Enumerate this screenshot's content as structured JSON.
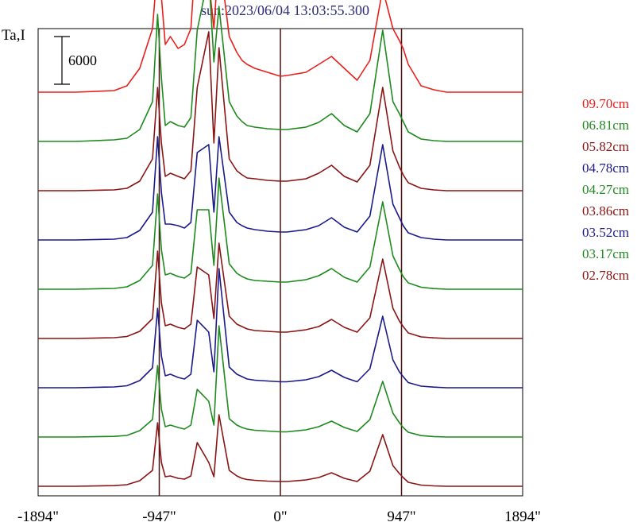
{
  "chart_data": {
    "type": "line",
    "title": "sun:2023/06/04 13:03:55.300",
    "ylabel": "Ta,I",
    "scale_bar_label": "6000",
    "scale_bar_value": 6000,
    "xlim": [
      -1894,
      1894
    ],
    "x_ticks": [
      {
        "value": -1894,
        "label": "-1894\""
      },
      {
        "value": -947,
        "label": "-947\""
      },
      {
        "value": 0,
        "label": "0\""
      },
      {
        "value": 947,
        "label": "947\""
      },
      {
        "value": 1894,
        "label": "1894\""
      }
    ],
    "vertical_lines": [
      -947,
      0,
      947
    ],
    "grid": false,
    "legend_position": "right",
    "trace_offset": 6200,
    "x": [
      -1894,
      -1600,
      -1300,
      -1200,
      -1100,
      -1000,
      -960,
      -930,
      -900,
      -860,
      -800,
      -750,
      -700,
      -650,
      -560,
      -520,
      -480,
      -400,
      -340,
      -300,
      -260,
      -200,
      -100,
      0,
      50,
      200,
      300,
      400,
      500,
      600,
      700,
      800,
      880,
      930,
      960,
      1000,
      1100,
      1200,
      1300,
      1894
    ],
    "series": [
      {
        "name": "09.70cm",
        "color": "#e8201c",
        "baseline": 49600,
        "values": [
          0,
          0,
          200,
          800,
          3000,
          8000,
          16000,
          12000,
          6000,
          7000,
          5500,
          6000,
          8000,
          20000,
          14000,
          8000,
          17500,
          7000,
          5000,
          4000,
          3500,
          3000,
          2500,
          2000,
          2100,
          2500,
          3500,
          4500,
          3000,
          1500,
          4000,
          13000,
          8000,
          6500,
          5500,
          3500,
          800,
          300,
          0,
          0
        ]
      },
      {
        "name": "06.81cm",
        "color": "#1e8a1e",
        "baseline": 43400,
        "values": [
          0,
          0,
          200,
          400,
          1500,
          5000,
          16000,
          8000,
          2000,
          2500,
          2000,
          1800,
          3000,
          14000,
          21000,
          10000,
          17000,
          5000,
          3200,
          2500,
          2000,
          1800,
          1600,
          1500,
          1500,
          1800,
          2400,
          3500,
          2000,
          1200,
          3500,
          14000,
          5000,
          3500,
          2500,
          1200,
          300,
          100,
          0,
          0
        ]
      },
      {
        "name": "05.82cm",
        "color": "#8a1414",
        "baseline": 37200,
        "values": [
          0,
          0,
          100,
          300,
          1200,
          4000,
          13000,
          6000,
          1800,
          2200,
          1800,
          1500,
          2500,
          13000,
          20000,
          6000,
          18000,
          4000,
          2500,
          2000,
          1600,
          1500,
          1300,
          1200,
          1200,
          1500,
          2200,
          3200,
          1800,
          1100,
          3200,
          13000,
          5000,
          3000,
          2000,
          1000,
          300,
          100,
          0,
          0
        ]
      },
      {
        "name": "04.78cm",
        "color": "#1a1a8a",
        "baseline": 31000,
        "values": [
          0,
          0,
          100,
          300,
          1200,
          3500,
          13000,
          6000,
          2000,
          2000,
          1800,
          1500,
          2200,
          11000,
          12000,
          3500,
          13000,
          3500,
          2200,
          1800,
          1500,
          1300,
          1100,
          1000,
          1000,
          1300,
          1800,
          2800,
          1600,
          1000,
          3000,
          12000,
          4500,
          2800,
          1800,
          900,
          300,
          100,
          0,
          0
        ]
      },
      {
        "name": "04.27cm",
        "color": "#1e8a1e",
        "baseline": 24800,
        "values": [
          0,
          0,
          100,
          300,
          1100,
          3000,
          12000,
          5000,
          1800,
          2000,
          1600,
          1400,
          2000,
          10000,
          10000,
          3000,
          14000,
          3200,
          2000,
          1600,
          1300,
          1100,
          1000,
          900,
          900,
          1200,
          1700,
          2600,
          1500,
          900,
          2800,
          11000,
          4200,
          2500,
          1600,
          800,
          250,
          80,
          0,
          0
        ]
      },
      {
        "name": "03.86cm",
        "color": "#8a1414",
        "baseline": 18600,
        "values": [
          0,
          0,
          100,
          250,
          900,
          2500,
          11000,
          4500,
          1600,
          1800,
          1400,
          1200,
          1800,
          9000,
          8000,
          2500,
          12000,
          2800,
          1800,
          1500,
          1200,
          1000,
          900,
          800,
          800,
          1100,
          1500,
          2400,
          1400,
          800,
          2600,
          10000,
          3800,
          2200,
          1500,
          700,
          200,
          80,
          0,
          0
        ]
      },
      {
        "name": "03.52cm",
        "color": "#1a1a8a",
        "baseline": 12400,
        "values": [
          0,
          0,
          100,
          250,
          900,
          2500,
          10000,
          4000,
          1500,
          1700,
          1300,
          1100,
          1700,
          8500,
          7000,
          2000,
          15000,
          2600,
          1700,
          1400,
          1100,
          950,
          850,
          750,
          750,
          1000,
          1400,
          2200,
          1300,
          750,
          2400,
          9000,
          3500,
          2000,
          1400,
          650,
          200,
          80,
          0,
          0
        ]
      },
      {
        "name": "03.17cm",
        "color": "#1e8a1e",
        "baseline": 6200,
        "values": [
          0,
          0,
          80,
          200,
          800,
          2200,
          9000,
          3500,
          1300,
          1500,
          1200,
          1000,
          1500,
          6000,
          4500,
          1500,
          14000,
          2300,
          1500,
          1200,
          1000,
          850,
          750,
          650,
          650,
          900,
          1300,
          2000,
          1200,
          700,
          2200,
          7000,
          3000,
          1800,
          1200,
          600,
          180,
          60,
          0,
          0
        ]
      },
      {
        "name": "02.78cm",
        "color": "#8a1414",
        "baseline": 0,
        "values": [
          0,
          0,
          80,
          200,
          700,
          2000,
          8000,
          3000,
          1200,
          1300,
          1000,
          900,
          1300,
          5500,
          3000,
          1200,
          9000,
          2000,
          1300,
          1000,
          850,
          750,
          650,
          600,
          600,
          800,
          1100,
          1700,
          1000,
          600,
          1900,
          6500,
          2600,
          1600,
          1100,
          500,
          150,
          50,
          0,
          0
        ]
      }
    ]
  }
}
